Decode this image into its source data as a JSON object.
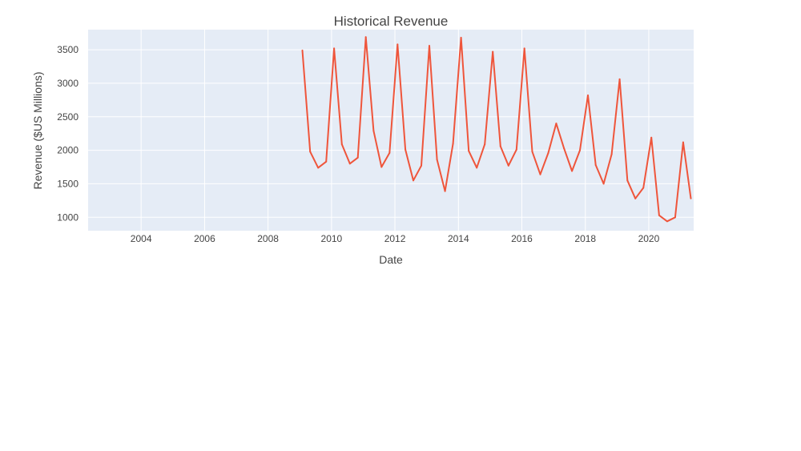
{
  "chart_data": {
    "type": "line",
    "title": "Historical Revenue",
    "xlabel": "Date",
    "ylabel": "Revenue ($US Millions)",
    "x_axis_type": "date",
    "xlim": [
      "2002-05-01",
      "2021-06-01"
    ],
    "ylim": [
      800,
      3800
    ],
    "x_ticks": [
      "2004",
      "2006",
      "2008",
      "2010",
      "2012",
      "2014",
      "2016",
      "2018",
      "2020"
    ],
    "y_ticks": [
      1000,
      1500,
      2000,
      2500,
      3000,
      3500
    ],
    "grid": true,
    "colors": {
      "plot_bg": "#E5ECF6",
      "grid": "#ffffff",
      "line": "#EF553B"
    },
    "series": [
      {
        "x": [
          "2009-01-31",
          "2009-04-30",
          "2009-07-31",
          "2009-10-31",
          "2010-01-31",
          "2010-04-30",
          "2010-07-31",
          "2010-10-31",
          "2011-01-31",
          "2011-04-30",
          "2011-07-31",
          "2011-10-31",
          "2012-01-31",
          "2012-04-30",
          "2012-07-31",
          "2012-10-31",
          "2013-01-31",
          "2013-04-30",
          "2013-07-31",
          "2013-10-31",
          "2014-01-31",
          "2014-04-30",
          "2014-07-31",
          "2014-10-31",
          "2015-01-31",
          "2015-04-30",
          "2015-07-31",
          "2015-10-31",
          "2016-01-31",
          "2016-04-30",
          "2016-07-31",
          "2016-10-31",
          "2017-01-31",
          "2017-04-30",
          "2017-07-31",
          "2017-10-31",
          "2018-01-31",
          "2018-04-30",
          "2018-07-31",
          "2018-10-31",
          "2019-01-31",
          "2019-04-30",
          "2019-07-31",
          "2019-10-31",
          "2020-01-31",
          "2020-04-30",
          "2020-07-31",
          "2020-10-31",
          "2021-01-31",
          "2021-04-30"
        ],
        "values": [
          3490,
          1980,
          1740,
          1830,
          3520,
          2090,
          1800,
          1890,
          3690,
          2290,
          1750,
          1960,
          3580,
          2010,
          1550,
          1770,
          3560,
          1860,
          1390,
          2100,
          3680,
          1990,
          1740,
          2090,
          3470,
          2060,
          1770,
          2010,
          3520,
          1980,
          1640,
          1960,
          2400,
          2030,
          1690,
          2000,
          2820,
          1780,
          1500,
          1940,
          3060,
          1550,
          1280,
          1440,
          2190,
          1030,
          940,
          1000,
          2120,
          1280
        ]
      }
    ]
  }
}
